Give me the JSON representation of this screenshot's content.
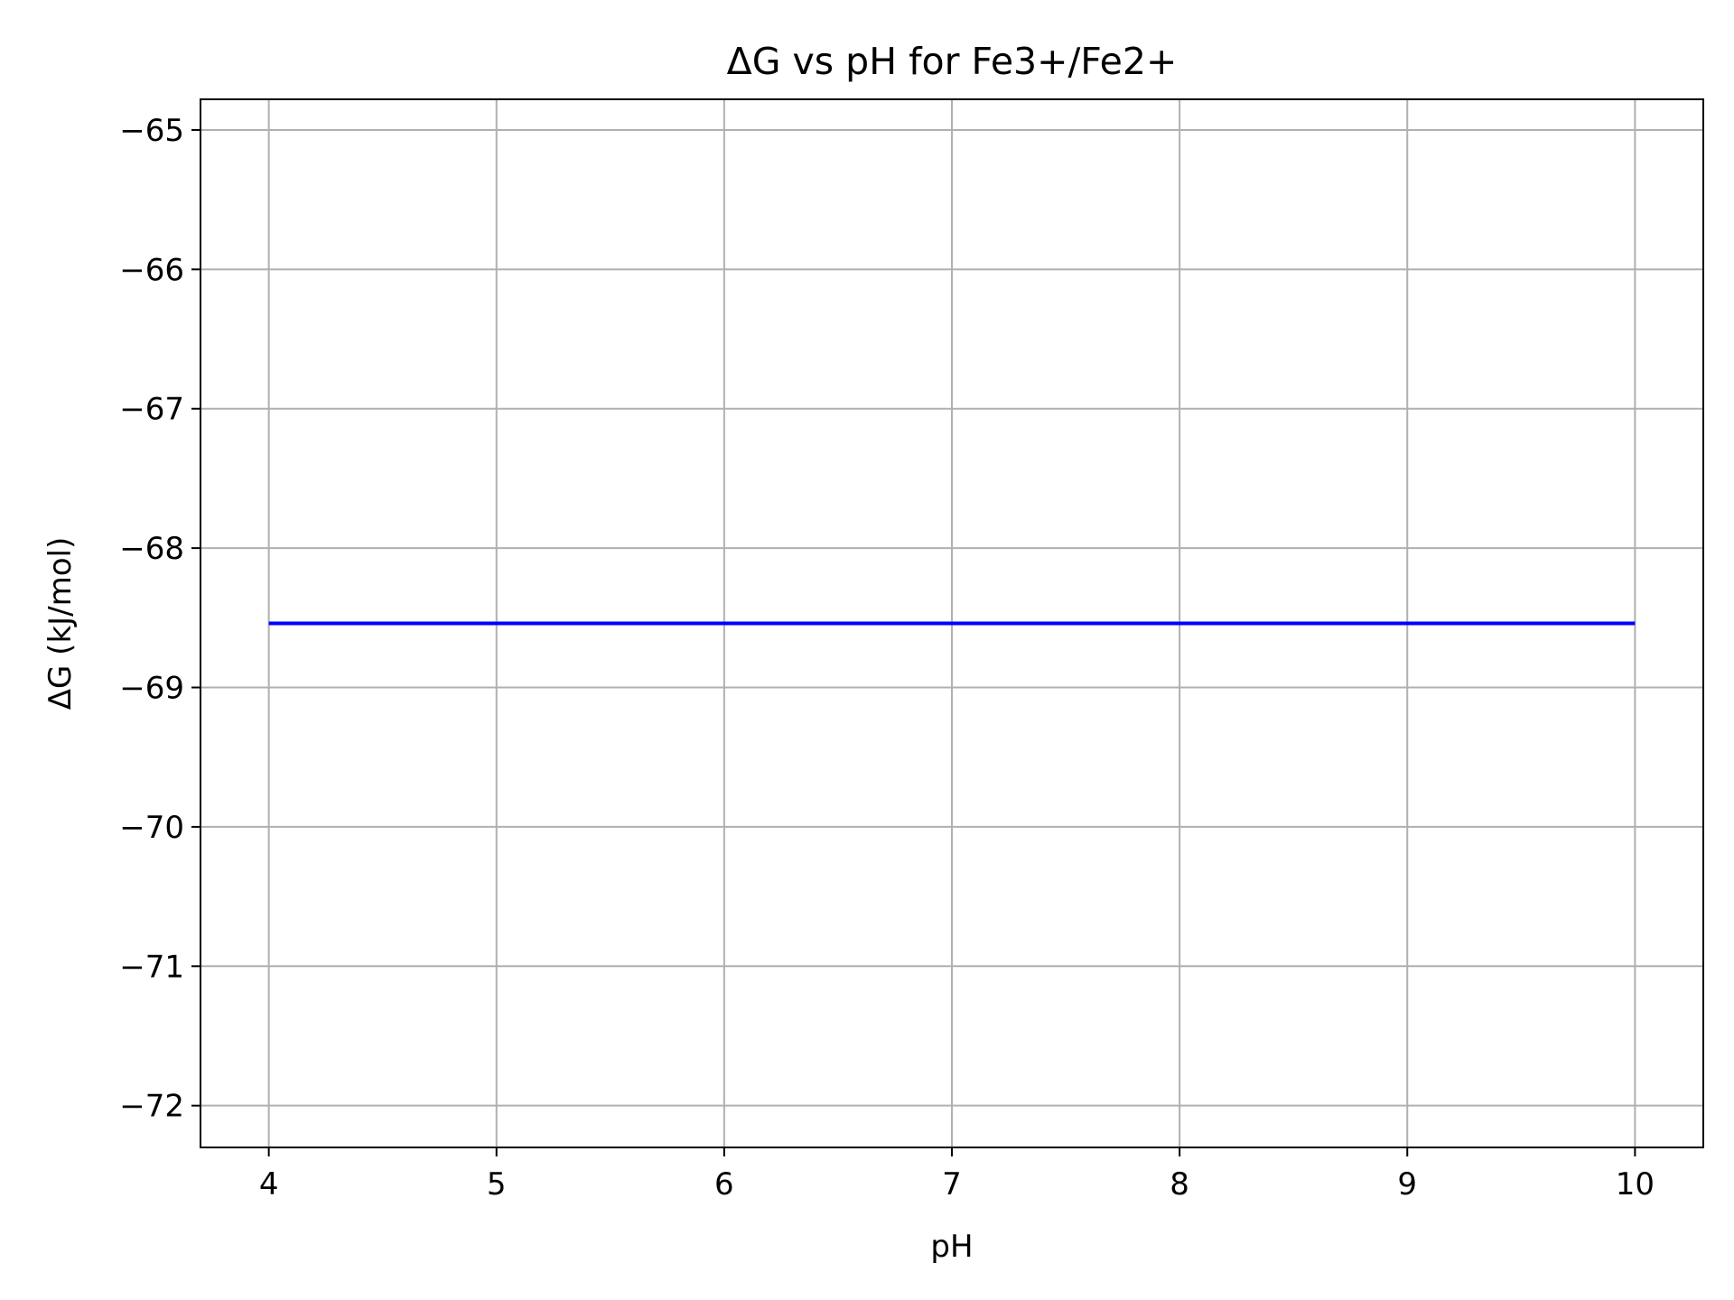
{
  "chart_data": {
    "type": "line",
    "title": "ΔG vs pH for Fe3+/Fe2+",
    "xlabel": "pH",
    "ylabel": "ΔG (kJ/mol)",
    "xlim": [
      3.7,
      10.3
    ],
    "ylim": [
      -72.3,
      -64.78
    ],
    "grid": true,
    "x_ticks": [
      4,
      5,
      6,
      7,
      8,
      9,
      10
    ],
    "y_ticks": [
      -65,
      -66,
      -67,
      -68,
      -69,
      -70,
      -71,
      -72
    ],
    "x_tick_labels": [
      "4",
      "5",
      "6",
      "7",
      "8",
      "9",
      "10"
    ],
    "y_tick_labels": [
      "−65",
      "−66",
      "−67",
      "−68",
      "−69",
      "−70",
      "−71",
      "−72"
    ],
    "series": [
      {
        "x": [
          4,
          5,
          6,
          7,
          8,
          9,
          10
        ],
        "y": [
          -68.54,
          -68.54,
          -68.54,
          -68.54,
          -68.54,
          -68.54,
          -68.54
        ],
        "color": "#0000ff"
      }
    ],
    "colors": {
      "grid": "#b0b0b0",
      "axes": "#000000",
      "line": "#0000ff"
    }
  }
}
